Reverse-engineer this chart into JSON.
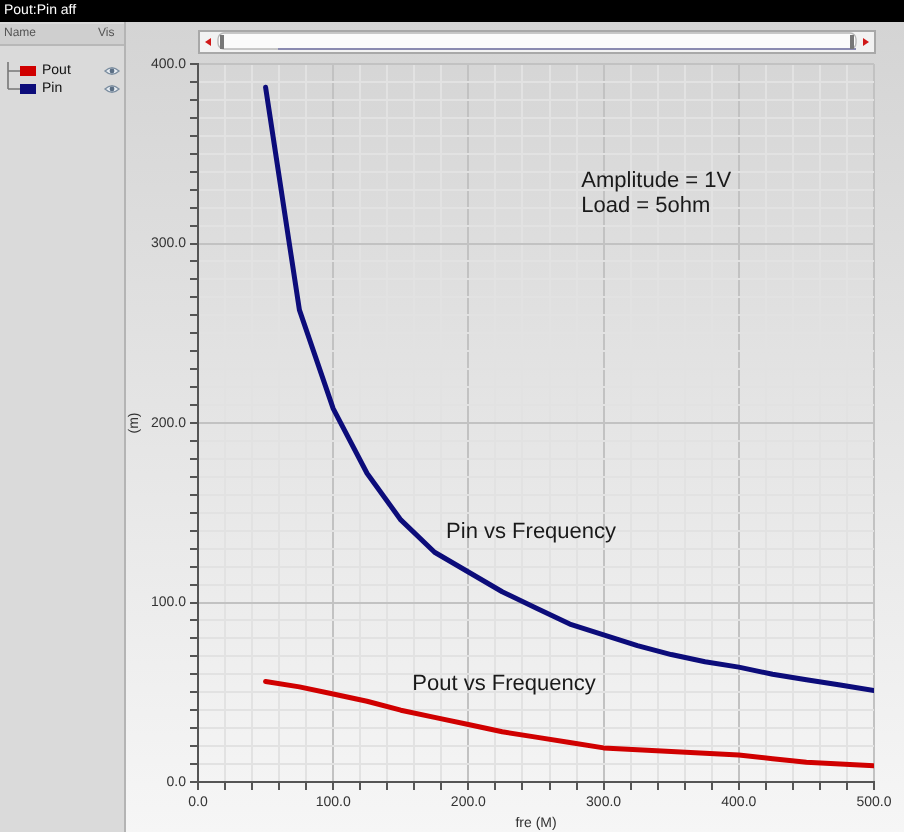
{
  "chart_data": {
    "type": "line",
    "title": "Pout:Pin aff",
    "xlabel": "fre (M)",
    "ylabel": "(m)",
    "legend_title": "Name",
    "x": [
      50,
      75,
      100,
      125,
      150,
      175,
      200,
      225,
      250,
      275,
      300,
      325,
      350,
      375,
      400,
      425,
      450,
      475,
      500
    ],
    "series": [
      {
        "name": "Pout",
        "color": "#d00000",
        "values": [
          56,
          53,
          49,
          45,
          40,
          36,
          32,
          28,
          25,
          22,
          19,
          18,
          17,
          16,
          15,
          13,
          11,
          10,
          9
        ]
      },
      {
        "name": "Pin",
        "color": "#0c0c7a",
        "values": [
          387,
          263,
          208,
          172,
          146,
          128,
          117,
          106,
          97,
          88,
          82,
          76,
          71,
          67,
          64,
          60,
          57,
          54,
          51
        ]
      }
    ],
    "xlim": [
      0,
      500
    ],
    "ylim": [
      0,
      400
    ],
    "xticks": [
      {
        "value": 0,
        "label": "0.0"
      },
      {
        "value": 20,
        "label": null
      },
      {
        "value": 40,
        "label": null
      },
      {
        "value": 60,
        "label": null
      },
      {
        "value": 80,
        "label": null
      },
      {
        "value": 100,
        "label": "100.0"
      },
      {
        "value": 120,
        "label": null
      },
      {
        "value": 140,
        "label": null
      },
      {
        "value": 160,
        "label": null
      },
      {
        "value": 180,
        "label": null
      },
      {
        "value": 200,
        "label": "200.0"
      },
      {
        "value": 220,
        "label": null
      },
      {
        "value": 240,
        "label": null
      },
      {
        "value": 260,
        "label": null
      },
      {
        "value": 280,
        "label": null
      },
      {
        "value": 300,
        "label": "300.0"
      },
      {
        "value": 320,
        "label": null
      },
      {
        "value": 340,
        "label": null
      },
      {
        "value": 360,
        "label": null
      },
      {
        "value": 380,
        "label": null
      },
      {
        "value": 400,
        "label": "400.0"
      },
      {
        "value": 420,
        "label": null
      },
      {
        "value": 440,
        "label": null
      },
      {
        "value": 460,
        "label": null
      },
      {
        "value": 480,
        "label": null
      },
      {
        "value": 500,
        "label": "500.0"
      }
    ],
    "yticks": [
      {
        "value": 0,
        "label": "0.0"
      },
      {
        "value": 10,
        "label": null
      },
      {
        "value": 20,
        "label": null
      },
      {
        "value": 30,
        "label": null
      },
      {
        "value": 40,
        "label": null
      },
      {
        "value": 50,
        "label": null
      },
      {
        "value": 60,
        "label": null
      },
      {
        "value": 70,
        "label": null
      },
      {
        "value": 80,
        "label": null
      },
      {
        "value": 90,
        "label": null
      },
      {
        "value": 100,
        "label": "100.0"
      },
      {
        "value": 110,
        "label": null
      },
      {
        "value": 120,
        "label": null
      },
      {
        "value": 130,
        "label": null
      },
      {
        "value": 140,
        "label": null
      },
      {
        "value": 150,
        "label": null
      },
      {
        "value": 160,
        "label": null
      },
      {
        "value": 170,
        "label": null
      },
      {
        "value": 180,
        "label": null
      },
      {
        "value": 190,
        "label": null
      },
      {
        "value": 200,
        "label": "200.0"
      },
      {
        "value": 210,
        "label": null
      },
      {
        "value": 220,
        "label": null
      },
      {
        "value": 230,
        "label": null
      },
      {
        "value": 240,
        "label": null
      },
      {
        "value": 250,
        "label": null
      },
      {
        "value": 260,
        "label": null
      },
      {
        "value": 270,
        "label": null
      },
      {
        "value": 280,
        "label": null
      },
      {
        "value": 290,
        "label": null
      },
      {
        "value": 300,
        "label": "300.0"
      },
      {
        "value": 310,
        "label": null
      },
      {
        "value": 320,
        "label": null
      },
      {
        "value": 330,
        "label": null
      },
      {
        "value": 340,
        "label": null
      },
      {
        "value": 350,
        "label": null
      },
      {
        "value": 360,
        "label": null
      },
      {
        "value": 370,
        "label": null
      },
      {
        "value": 380,
        "label": null
      },
      {
        "value": 390,
        "label": null
      },
      {
        "value": 400,
        "label": "400.0"
      }
    ],
    "grid": true,
    "legend": "left",
    "marker": "none",
    "annotations": [
      "Amplitude = 1V",
      "Load = 5ohm",
      "Pin vs Frequency",
      "Pout vs Frequency",
      "Vis"
    ]
  }
}
